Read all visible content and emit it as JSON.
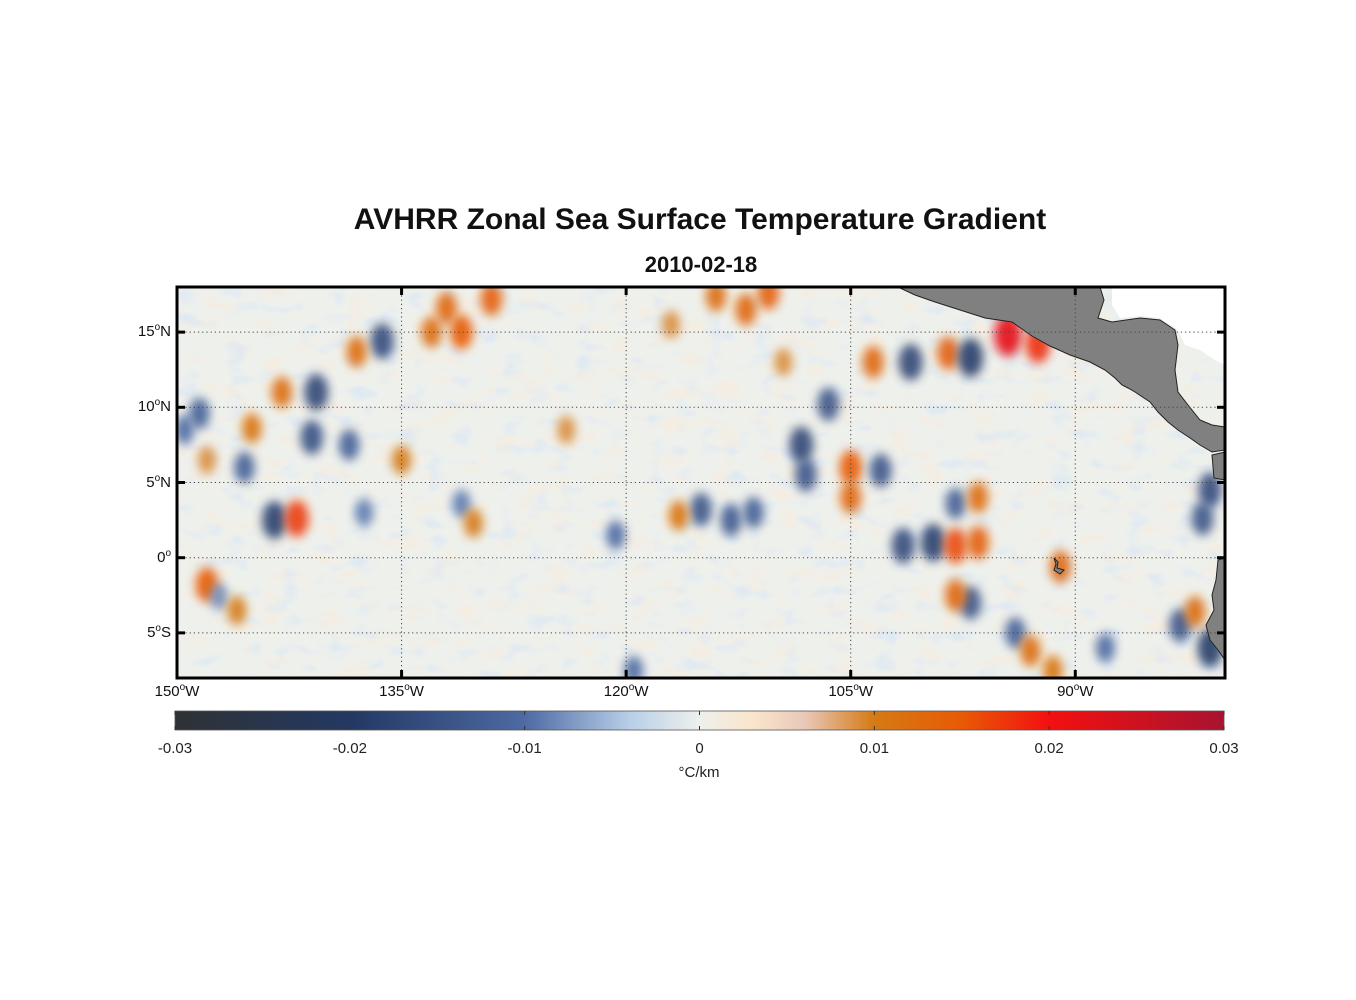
{
  "title": "AVHRR Zonal Sea Surface Temperature Gradient",
  "subtitle": "2010-02-18",
  "map": {
    "lon_range_deg": [
      -150,
      -80
    ],
    "lat_range_deg": [
      -8,
      18
    ],
    "grid": "dotted",
    "land_color": "#808080",
    "lat_ticks": [
      {
        "value": 15,
        "num": "15",
        "hemi": "N"
      },
      {
        "value": 10,
        "num": "10",
        "hemi": "N"
      },
      {
        "value": 5,
        "num": "5",
        "hemi": "N"
      },
      {
        "value": 0,
        "num": "0",
        "hemi": ""
      },
      {
        "value": -5,
        "num": "5",
        "hemi": "S"
      }
    ],
    "lon_ticks": [
      {
        "value": -150,
        "num": "150",
        "hemi": "W"
      },
      {
        "value": -135,
        "num": "135",
        "hemi": "W"
      },
      {
        "value": -120,
        "num": "120",
        "hemi": "W"
      },
      {
        "value": -105,
        "num": "105",
        "hemi": "W"
      },
      {
        "value": -90,
        "num": "90",
        "hemi": "W"
      }
    ],
    "degree_symbol": "o",
    "features": [
      {
        "lon": -143.5,
        "lat": 2.5,
        "value": -0.018
      },
      {
        "lon": -142.0,
        "lat": 2.6,
        "value": 0.017
      },
      {
        "lon": -148.0,
        "lat": -1.8,
        "value": 0.015
      },
      {
        "lon": -147.2,
        "lat": -2.6,
        "value": -0.008
      },
      {
        "lon": -136.3,
        "lat": 14.4,
        "value": -0.016
      },
      {
        "lon": -133.0,
        "lat": 15.0,
        "value": 0.012
      },
      {
        "lon": -131.0,
        "lat": 15.0,
        "value": 0.015
      },
      {
        "lon": -132.0,
        "lat": 16.6,
        "value": 0.013
      },
      {
        "lon": -129.0,
        "lat": 17.2,
        "value": 0.014
      },
      {
        "lon": -138.0,
        "lat": 13.7,
        "value": 0.012
      },
      {
        "lon": -140.7,
        "lat": 11.0,
        "value": -0.017
      },
      {
        "lon": -143.0,
        "lat": 11.0,
        "value": 0.012
      },
      {
        "lon": -141.0,
        "lat": 8.0,
        "value": -0.015
      },
      {
        "lon": -138.5,
        "lat": 7.5,
        "value": -0.012
      },
      {
        "lon": -145.0,
        "lat": 8.6,
        "value": 0.011
      },
      {
        "lon": -148.5,
        "lat": 9.6,
        "value": -0.012
      },
      {
        "lon": -131.0,
        "lat": 3.6,
        "value": -0.009
      },
      {
        "lon": -130.2,
        "lat": 2.3,
        "value": 0.01
      },
      {
        "lon": -114.0,
        "lat": 17.4,
        "value": 0.012
      },
      {
        "lon": -110.5,
        "lat": 17.6,
        "value": 0.014
      },
      {
        "lon": -112.0,
        "lat": 16.5,
        "value": 0.013
      },
      {
        "lon": -117.0,
        "lat": 15.5,
        "value": 0.009
      },
      {
        "lon": -109.5,
        "lat": 13.0,
        "value": 0.009
      },
      {
        "lon": -106.5,
        "lat": 10.2,
        "value": -0.014
      },
      {
        "lon": -108.3,
        "lat": 7.5,
        "value": -0.017
      },
      {
        "lon": -108.0,
        "lat": 5.5,
        "value": -0.014
      },
      {
        "lon": -105.0,
        "lat": 6.0,
        "value": 0.015
      },
      {
        "lon": -105.0,
        "lat": 4.0,
        "value": 0.013
      },
      {
        "lon": -103.0,
        "lat": 5.8,
        "value": -0.014
      },
      {
        "lon": -103.5,
        "lat": 13.0,
        "value": 0.013
      },
      {
        "lon": -101.0,
        "lat": 13.0,
        "value": -0.017
      },
      {
        "lon": -98.5,
        "lat": 13.6,
        "value": 0.014
      },
      {
        "lon": -97.0,
        "lat": 13.3,
        "value": -0.019
      },
      {
        "lon": -94.5,
        "lat": 14.8,
        "value": 0.022
      },
      {
        "lon": -92.5,
        "lat": 14.2,
        "value": 0.018
      },
      {
        "lon": -101.5,
        "lat": 0.8,
        "value": -0.016
      },
      {
        "lon": -99.5,
        "lat": 1.0,
        "value": -0.018
      },
      {
        "lon": -98.0,
        "lat": 0.8,
        "value": 0.016
      },
      {
        "lon": -96.5,
        "lat": 1.0,
        "value": 0.014
      },
      {
        "lon": -98.0,
        "lat": 3.6,
        "value": -0.012
      },
      {
        "lon": -96.5,
        "lat": 4.0,
        "value": 0.012
      },
      {
        "lon": -97.0,
        "lat": -3.0,
        "value": -0.014
      },
      {
        "lon": -98.0,
        "lat": -2.5,
        "value": 0.013
      },
      {
        "lon": -94.0,
        "lat": -5.0,
        "value": -0.012
      },
      {
        "lon": -93.0,
        "lat": -6.2,
        "value": 0.012
      },
      {
        "lon": -91.5,
        "lat": -7.5,
        "value": 0.011
      },
      {
        "lon": -91.0,
        "lat": -0.6,
        "value": 0.013
      },
      {
        "lon": -81.0,
        "lat": 4.5,
        "value": -0.016
      },
      {
        "lon": -81.5,
        "lat": 2.6,
        "value": -0.014
      },
      {
        "lon": -81.0,
        "lat": -6.0,
        "value": -0.019
      },
      {
        "lon": -83.0,
        "lat": -4.5,
        "value": -0.014
      },
      {
        "lon": -82.0,
        "lat": -3.6,
        "value": 0.012
      },
      {
        "lon": -88.0,
        "lat": -6.0,
        "value": -0.01
      },
      {
        "lon": -115.0,
        "lat": 3.2,
        "value": -0.014
      },
      {
        "lon": -116.5,
        "lat": 2.8,
        "value": 0.011
      },
      {
        "lon": -113.0,
        "lat": 2.5,
        "value": -0.013
      },
      {
        "lon": -111.5,
        "lat": 3.0,
        "value": -0.012
      },
      {
        "lon": -119.5,
        "lat": -7.5,
        "value": -0.01
      },
      {
        "lon": -120.7,
        "lat": 1.5,
        "value": -0.01
      },
      {
        "lon": -137.5,
        "lat": 3.0,
        "value": -0.009
      },
      {
        "lon": -124.0,
        "lat": 8.5,
        "value": 0.009
      },
      {
        "lon": -145.5,
        "lat": 6.0,
        "value": -0.012
      },
      {
        "lon": -149.5,
        "lat": 8.5,
        "value": -0.01
      },
      {
        "lon": -148.0,
        "lat": 6.5,
        "value": 0.009
      },
      {
        "lon": -135.0,
        "lat": 6.5,
        "value": 0.01
      },
      {
        "lon": -146.0,
        "lat": -3.5,
        "value": 0.01
      }
    ]
  },
  "colorbar": {
    "range": [
      -0.03,
      0.03
    ],
    "ticks": [
      -0.03,
      -0.02,
      -0.01,
      0,
      0.01,
      0.02,
      0.03
    ],
    "tick_labels": [
      "-0.03",
      "-0.02",
      "-0.01",
      "0",
      "0.01",
      "0.02",
      "0.03"
    ],
    "units": "°C/km",
    "stops": [
      {
        "value": -0.03,
        "color": "#2f3234"
      },
      {
        "value": -0.02,
        "color": "#233863"
      },
      {
        "value": -0.01,
        "color": "#4d6aa3"
      },
      {
        "value": -0.004,
        "color": "#b8cfe8"
      },
      {
        "value": 0,
        "color": "#eef0ec"
      },
      {
        "value": 0.003,
        "color": "#fae6cc"
      },
      {
        "value": 0.006,
        "color": "#e9c8b8"
      },
      {
        "value": 0.01,
        "color": "#d57a14"
      },
      {
        "value": 0.015,
        "color": "#e85a06"
      },
      {
        "value": 0.02,
        "color": "#f31010"
      },
      {
        "value": 0.03,
        "color": "#a81330"
      }
    ]
  }
}
